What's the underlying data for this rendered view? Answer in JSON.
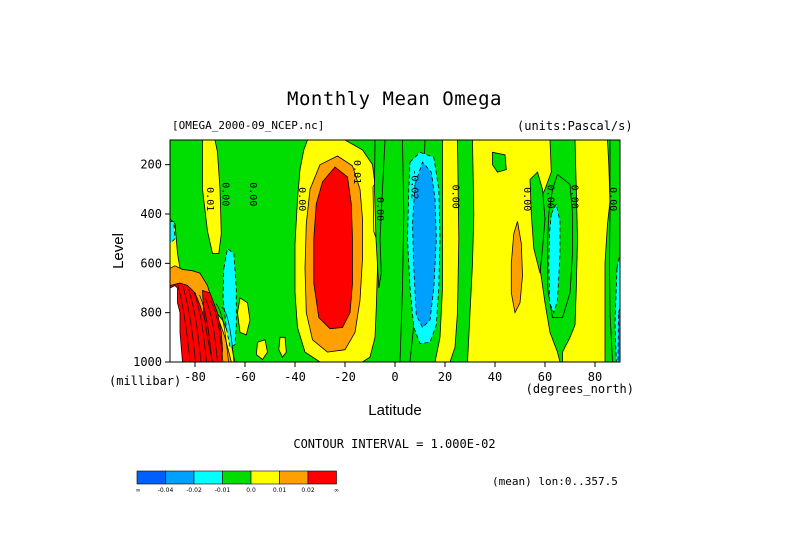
{
  "title": "Monthly Mean Omega",
  "dataset_label": "[OMEGA_2000-09_NCEP.nc]",
  "units_label": "(units:Pascal/s)",
  "contour_note": "CONTOUR INTERVAL = 1.000E-02",
  "mean_note": "(mean) lon:0..357.5",
  "chart_data": {
    "type": "heatmap",
    "title": "Monthly Mean Omega",
    "xlabel": "Latitude",
    "x_units": "(degrees_north)",
    "ylabel": "Level",
    "y_units": "(millibar)",
    "xlim": [
      -90,
      90
    ],
    "ylim": [
      1000,
      100
    ],
    "x_ticks": [
      -80,
      -60,
      -40,
      -20,
      0,
      20,
      40,
      60,
      80
    ],
    "x_tick_labels": [
      "-80",
      "-60",
      "-40",
      "-20",
      "0",
      "20",
      "40",
      "60",
      "80"
    ],
    "y_ticks": [
      200,
      400,
      600,
      800,
      1000
    ],
    "y_tick_labels": [
      "200",
      "400",
      "600",
      "800",
      "1000"
    ],
    "contour_interval": 0.01,
    "levels": [
      -0.04,
      -0.02,
      -0.01,
      0.0,
      0.01,
      0.02
    ],
    "colorbar_labels": [
      "-∞",
      "-0.04",
      "-0.02",
      "-0.01",
      "0.0",
      "0.01",
      "0.02",
      "∞"
    ],
    "colors": [
      "#0060ff",
      "#00a0ff",
      "#00ffff",
      "#00dd00",
      "#ffff00",
      "#ffa000",
      "#ff0000"
    ],
    "background_class": 3,
    "regions": [
      {
        "cls": 4,
        "pts": [
          [
            -77,
            100
          ],
          [
            -72,
            100
          ],
          [
            -71,
            150
          ],
          [
            -70,
            300
          ],
          [
            -69.5,
            480
          ],
          [
            -70.5,
            560
          ],
          [
            -73,
            560
          ],
          [
            -75,
            470
          ],
          [
            -77,
            300
          ]
        ]
      },
      {
        "cls": 4,
        "pts": [
          [
            -90,
            420
          ],
          [
            -88,
            440
          ],
          [
            -87,
            560
          ],
          [
            -86,
            620
          ],
          [
            -84,
            660
          ],
          [
            -82,
            680
          ],
          [
            -79,
            700
          ],
          [
            -76,
            740
          ],
          [
            -73,
            780
          ],
          [
            -69,
            830
          ],
          [
            -66,
            900
          ],
          [
            -64.5,
            980
          ],
          [
            -64,
            1000
          ],
          [
            -90,
            1000
          ]
        ]
      },
      {
        "cls": 5,
        "pts": [
          [
            -90,
            620
          ],
          [
            -88,
            610
          ],
          [
            -85,
            625
          ],
          [
            -81,
            630
          ],
          [
            -78,
            640
          ],
          [
            -75,
            690
          ],
          [
            -73,
            760
          ],
          [
            -70.5,
            830
          ],
          [
            -68,
            900
          ],
          [
            -66.5,
            960
          ],
          [
            -65.5,
            1000
          ],
          [
            -90,
            1000
          ]
        ]
      },
      {
        "cls": 6,
        "pts": [
          [
            -90,
            690
          ],
          [
            -86,
            680
          ],
          [
            -83,
            690
          ],
          [
            -80,
            720
          ],
          [
            -78,
            770
          ],
          [
            -76,
            830
          ],
          [
            -74.5,
            890
          ],
          [
            -73.5,
            940
          ],
          [
            -73,
            1000
          ],
          [
            -90,
            1000
          ]
        ]
      },
      {
        "cls": 6,
        "pts": [
          [
            -77,
            710
          ],
          [
            -74,
            720
          ],
          [
            -71,
            800
          ],
          [
            -69.5,
            880
          ],
          [
            -69,
            950
          ],
          [
            -69.5,
            1000
          ],
          [
            -73,
            1000
          ],
          [
            -75,
            900
          ],
          [
            -76.5,
            800
          ]
        ]
      },
      {
        "cls": 4,
        "pts": [
          [
            -62,
            740
          ],
          [
            -59,
            760
          ],
          [
            -58,
            830
          ],
          [
            -59.5,
            890
          ],
          [
            -62,
            880
          ],
          [
            -63,
            800
          ]
        ]
      },
      {
        "cls": 4,
        "pts": [
          [
            -55,
            920
          ],
          [
            -52,
            910
          ],
          [
            -51,
            960
          ],
          [
            -53,
            990
          ],
          [
            -55.5,
            970
          ]
        ]
      },
      {
        "cls": 4,
        "pts": [
          [
            -46,
            900
          ],
          [
            -44,
            900
          ],
          [
            -43.5,
            960
          ],
          [
            -45,
            980
          ],
          [
            -46.5,
            950
          ]
        ]
      },
      {
        "cls": 4,
        "pts": [
          [
            -35,
            100
          ],
          [
            -20,
            100
          ],
          [
            -13,
            140
          ],
          [
            -9,
            200
          ],
          [
            -7.5,
            320
          ],
          [
            -7,
            440
          ],
          [
            -7,
            620
          ],
          [
            -7.5,
            780
          ],
          [
            -8,
            900
          ],
          [
            -10,
            980
          ],
          [
            -13,
            1000
          ],
          [
            -30,
            1000
          ],
          [
            -36,
            960
          ],
          [
            -39,
            860
          ],
          [
            -40,
            720
          ],
          [
            -40,
            520
          ],
          [
            -39,
            340
          ],
          [
            -38,
            220
          ],
          [
            -36.5,
            140
          ]
        ]
      },
      {
        "cls": 5,
        "pts": [
          [
            -30,
            200
          ],
          [
            -23,
            165
          ],
          [
            -17,
            205
          ],
          [
            -14,
            300
          ],
          [
            -13,
            420
          ],
          [
            -13,
            580
          ],
          [
            -14,
            750
          ],
          [
            -16,
            880
          ],
          [
            -20,
            950
          ],
          [
            -27,
            960
          ],
          [
            -33,
            910
          ],
          [
            -35.5,
            800
          ],
          [
            -36,
            620
          ],
          [
            -35.5,
            440
          ],
          [
            -34,
            300
          ]
        ]
      },
      {
        "cls": 6,
        "pts": [
          [
            -29,
            270
          ],
          [
            -24,
            210
          ],
          [
            -19,
            250
          ],
          [
            -17.5,
            360
          ],
          [
            -17,
            500
          ],
          [
            -17,
            680
          ],
          [
            -18,
            800
          ],
          [
            -21,
            860
          ],
          [
            -26,
            865
          ],
          [
            -30.5,
            820
          ],
          [
            -32.5,
            680
          ],
          [
            -32.5,
            500
          ],
          [
            -31.5,
            360
          ]
        ]
      },
      {
        "cls": 4,
        "pts": [
          [
            -8.8,
            290
          ],
          [
            -7.9,
            275
          ],
          [
            -7.3,
            340
          ],
          [
            -7.5,
            500
          ],
          [
            -8.5,
            470
          ]
        ]
      },
      {
        "cls": 4,
        "pts": [
          [
            19,
            100
          ],
          [
            25,
            100
          ],
          [
            25.5,
            500
          ],
          [
            25,
            800
          ],
          [
            24,
            940
          ],
          [
            22,
            1000
          ],
          [
            16,
            1000
          ],
          [
            18,
            900
          ],
          [
            19,
            700
          ],
          [
            19,
            400
          ]
        ]
      },
      {
        "cls": 4,
        "pts": [
          [
            31,
            100
          ],
          [
            62,
            100
          ],
          [
            62.5,
            230
          ],
          [
            60,
            300
          ],
          [
            57,
            360
          ],
          [
            57,
            480
          ],
          [
            58,
            620
          ],
          [
            60,
            760
          ],
          [
            62,
            880
          ],
          [
            65,
            960
          ],
          [
            66,
            1000
          ],
          [
            29,
            1000
          ],
          [
            30,
            800
          ],
          [
            31,
            600
          ],
          [
            31.5,
            400
          ]
        ]
      },
      {
        "cls": 4,
        "pts": [
          [
            72,
            100
          ],
          [
            85,
            100
          ],
          [
            85.5,
            200
          ],
          [
            86,
            350
          ],
          [
            85,
            440
          ],
          [
            84,
            600
          ],
          [
            84,
            800
          ],
          [
            84,
            1000
          ],
          [
            67,
            1000
          ],
          [
            67,
            960
          ],
          [
            70,
            900
          ],
          [
            72,
            850
          ],
          [
            72.5,
            700
          ],
          [
            73,
            500
          ],
          [
            72.5,
            300
          ]
        ]
      },
      {
        "cls": 3,
        "pts": [
          [
            39,
            150
          ],
          [
            44,
            160
          ],
          [
            44.5,
            220
          ],
          [
            41,
            230
          ],
          [
            39,
            200
          ]
        ]
      },
      {
        "cls": 5,
        "pts": [
          [
            47.5,
            480
          ],
          [
            49,
            430
          ],
          [
            50.5,
            520
          ],
          [
            51,
            650
          ],
          [
            50,
            760
          ],
          [
            48,
            800
          ],
          [
            46.5,
            720
          ],
          [
            46.5,
            600
          ]
        ]
      },
      {
        "cls": 3,
        "pts": [
          [
            54,
            260
          ],
          [
            57,
            230
          ],
          [
            59,
            300
          ],
          [
            60,
            420
          ],
          [
            59,
            540
          ],
          [
            58,
            640
          ],
          [
            55.5,
            540
          ],
          [
            54.5,
            400
          ]
        ]
      },
      {
        "cls": 3,
        "pts": [
          [
            63,
            300
          ],
          [
            65,
            240
          ],
          [
            70,
            280
          ],
          [
            71,
            400
          ],
          [
            71,
            560
          ],
          [
            70,
            720
          ],
          [
            67,
            820
          ],
          [
            63,
            820
          ],
          [
            61,
            700
          ],
          [
            61,
            520
          ],
          [
            61.5,
            400
          ]
        ]
      },
      {
        "cls": 3,
        "pts": [
          [
            86,
            100
          ],
          [
            90,
            100
          ],
          [
            90,
            1000
          ],
          [
            87,
            1000
          ],
          [
            86,
            800
          ],
          [
            85.8,
            600
          ],
          [
            86,
            400
          ]
        ]
      },
      {
        "cls": 3,
        "pts": [
          [
            -8,
            100
          ],
          [
            -4,
            100
          ],
          [
            -5,
            300
          ],
          [
            -6,
            500
          ],
          [
            -5.5,
            640
          ],
          [
            -6.5,
            700
          ],
          [
            -7.6,
            500
          ],
          [
            -8.2,
            300
          ]
        ]
      },
      {
        "cls": 3,
        "pts": [
          [
            3,
            100
          ],
          [
            12,
            100
          ],
          [
            11,
            400
          ],
          [
            8,
            800
          ],
          [
            6,
            1000
          ],
          [
            2,
            1000
          ],
          [
            3,
            700
          ],
          [
            3.5,
            400
          ]
        ]
      },
      {
        "cls": 2,
        "pts": [
          [
            6,
            190
          ],
          [
            10,
            150
          ],
          [
            15.5,
            170
          ],
          [
            17.5,
            300
          ],
          [
            18,
            500
          ],
          [
            17.5,
            700
          ],
          [
            16.5,
            850
          ],
          [
            14,
            920
          ],
          [
            10,
            925
          ],
          [
            7.5,
            860
          ],
          [
            6,
            700
          ],
          [
            5,
            500
          ],
          [
            5.5,
            300
          ]
        ]
      },
      {
        "cls": 1,
        "pts": [
          [
            8,
            280
          ],
          [
            11,
            190
          ],
          [
            14.5,
            230
          ],
          [
            16,
            340
          ],
          [
            16.5,
            500
          ],
          [
            15.5,
            700
          ],
          [
            14,
            830
          ],
          [
            11,
            860
          ],
          [
            8.5,
            810
          ],
          [
            7.5,
            620
          ],
          [
            7,
            440
          ]
        ]
      },
      {
        "cls": 2,
        "pts": [
          [
            -68.5,
            620
          ],
          [
            -67,
            540
          ],
          [
            -64.5,
            560
          ],
          [
            -63.5,
            700
          ],
          [
            -63.5,
            850
          ],
          [
            -64,
            930
          ],
          [
            -66,
            940
          ],
          [
            -67.5,
            860
          ],
          [
            -68.8,
            740
          ]
        ]
      },
      {
        "cls": 2,
        "pts": [
          [
            -90,
            430
          ],
          [
            -88.5,
            430
          ],
          [
            -88,
            500
          ],
          [
            -90,
            520
          ]
        ]
      },
      {
        "cls": 2,
        "pts": [
          [
            62.5,
            400
          ],
          [
            64.5,
            360
          ],
          [
            66,
            430
          ],
          [
            66,
            560
          ],
          [
            65,
            750
          ],
          [
            63.5,
            800
          ],
          [
            61.8,
            760
          ],
          [
            61.5,
            600
          ],
          [
            61.8,
            480
          ]
        ]
      },
      {
        "cls": 2,
        "pts": [
          [
            88.8,
            620
          ],
          [
            90,
            560
          ],
          [
            90,
            1000
          ],
          [
            88.5,
            1000
          ],
          [
            88,
            840
          ]
        ]
      },
      {
        "cls": 1,
        "pts": [
          [
            89.4,
            800
          ],
          [
            90,
            780
          ],
          [
            90,
            1000
          ],
          [
            89.2,
            1000
          ]
        ]
      }
    ],
    "contour_labels": [
      {
        "text": "0.01",
        "lat": -75.2,
        "lev": 340
      },
      {
        "text": "0.00",
        "lat": -69,
        "lev": 320
      },
      {
        "text": "0.00",
        "lat": -58,
        "lev": 320
      },
      {
        "text": "0.00",
        "lat": -38.5,
        "lev": 340
      },
      {
        "text": "0.01",
        "lat": -16.5,
        "lev": 230
      },
      {
        "text": "0.00",
        "lat": -7.3,
        "lev": 380
      },
      {
        "text": "-0.02",
        "lat": 6.5,
        "lev": 280
      },
      {
        "text": "0.00",
        "lat": 23,
        "lev": 330
      },
      {
        "text": "0.00",
        "lat": 51.5,
        "lev": 340
      },
      {
        "text": "0.00",
        "lat": 61,
        "lev": 330
      },
      {
        "text": "0.00",
        "lat": 70.5,
        "lev": 330
      },
      {
        "text": "0.00",
        "lat": 86,
        "lev": 340
      }
    ]
  }
}
